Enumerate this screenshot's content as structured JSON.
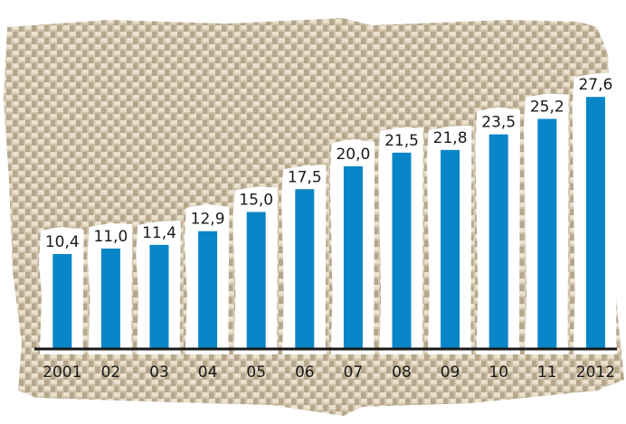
{
  "chart_data": {
    "type": "bar",
    "categories": [
      "2001",
      "02",
      "03",
      "04",
      "05",
      "06",
      "07",
      "08",
      "09",
      "10",
      "11",
      "2012"
    ],
    "values": [
      10.4,
      11.0,
      11.4,
      12.9,
      15.0,
      17.5,
      20.0,
      21.5,
      21.8,
      23.5,
      25.2,
      27.6
    ],
    "value_labels": [
      "10,4",
      "11,0",
      "11,4",
      "12,9",
      "15,0",
      "17,5",
      "20,0",
      "21,5",
      "21,8",
      "23,5",
      "25,2",
      "27,6"
    ],
    "title": "",
    "xlabel": "",
    "ylabel": "",
    "ylim": [
      0,
      30
    ],
    "grid": false,
    "colors": {
      "bar": "#0a86c8",
      "label_card": "#ffffff",
      "baseline": "#1a1a1a",
      "fabric_light": "#d9cdb8",
      "fabric_dark": "#a8997f"
    }
  }
}
